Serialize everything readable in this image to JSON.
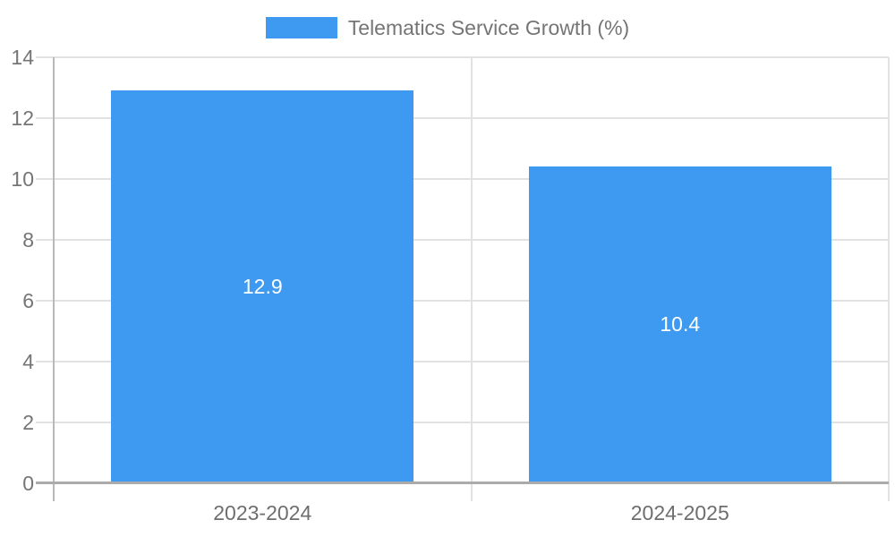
{
  "legend": {
    "label": "Telematics Service Growth (%)"
  },
  "chart_data": {
    "type": "bar",
    "title": "Telematics Service Growth (%)",
    "categories": [
      "2023-2024",
      "2024-2025"
    ],
    "values": [
      12.9,
      10.4
    ],
    "data_labels": [
      "12.9",
      "10.4"
    ],
    "xlabel": "",
    "ylabel": "",
    "ylim": [
      0,
      14
    ],
    "yticks": [
      0,
      2,
      4,
      6,
      8,
      10,
      12,
      14
    ],
    "grid": true,
    "legend_position": "top"
  },
  "colors": {
    "bar": "#3d9af0",
    "grid": "#e2e2e2",
    "axis_x": "#ababab",
    "axis_y": "#b9b9b9",
    "tick_text": "#757575",
    "bar_label": "#ffffff"
  }
}
